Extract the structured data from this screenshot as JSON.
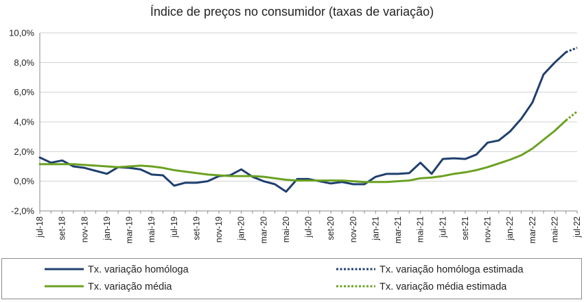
{
  "chart_data": {
    "type": "line",
    "title": "Índice de preços no consumidor  (taxas  de variação)",
    "xlabel": "",
    "ylabel": "",
    "ylim": [
      -2.0,
      10.0
    ],
    "yticks": [
      "-2,0%",
      "0,0%",
      "2,0%",
      "4,0%",
      "6,0%",
      "8,0%",
      "10,0%"
    ],
    "ytick_values": [
      -2,
      0,
      2,
      4,
      6,
      8,
      10
    ],
    "grid": "horizontal",
    "legend_position": "bottom",
    "colors": {
      "homologa": "#1f3f6e",
      "media": "#6aa121",
      "gridline": "#d0d0d0",
      "axis": "#8a8a8a"
    },
    "x": [
      "jul-18",
      "ago-18",
      "set-18",
      "out-18",
      "nov-18",
      "dez-18",
      "jan-19",
      "fev-19",
      "mar-19",
      "abr-19",
      "mai-19",
      "jun-19",
      "jul-19",
      "ago-19",
      "set-19",
      "out-19",
      "nov-19",
      "dez-19",
      "jan-20",
      "fev-20",
      "mar-20",
      "abr-20",
      "mai-20",
      "jun-20",
      "jul-20",
      "ago-20",
      "set-20",
      "out-20",
      "nov-20",
      "dez-20",
      "jan-21",
      "fev-21",
      "mar-21",
      "abr-21",
      "mai-21",
      "jun-21",
      "jul-21",
      "ago-21",
      "set-21",
      "out-21",
      "nov-21",
      "dez-21",
      "jan-22",
      "fev-22",
      "mar-22",
      "abr-22",
      "mai-22",
      "jun-22",
      "jul-22"
    ],
    "xtick_labels": [
      "jul-18",
      "set-18",
      "nov-18",
      "jan-19",
      "mar-19",
      "mai-19",
      "jul-19",
      "set-19",
      "nov-19",
      "jan-20",
      "mar-20",
      "mai-20",
      "jul-20",
      "set-20",
      "nov-20",
      "jan-21",
      "mar-21",
      "mai-21",
      "jul-21",
      "set-21",
      "nov-21",
      "jan-22",
      "mar-22",
      "mai-22",
      "jul-22"
    ],
    "series": [
      {
        "name": "Tx. variação homóloga",
        "style": "solid",
        "values": [
          1.6,
          1.25,
          1.4,
          1.0,
          0.9,
          0.7,
          0.5,
          0.95,
          0.9,
          0.8,
          0.45,
          0.4,
          -0.3,
          -0.1,
          -0.1,
          0.0,
          0.35,
          0.4,
          0.8,
          0.3,
          0.0,
          -0.2,
          -0.7,
          0.15,
          0.15,
          0.0,
          -0.15,
          -0.05,
          -0.2,
          -0.2,
          0.3,
          0.5,
          0.5,
          0.55,
          1.25,
          0.5,
          1.5,
          1.55,
          1.5,
          1.8,
          2.6,
          2.75,
          3.35,
          4.2,
          5.3,
          7.2,
          8.0,
          8.7,
          null
        ]
      },
      {
        "name": "Tx. variação homóloga estimada",
        "style": "dotted",
        "values": [
          null,
          null,
          null,
          null,
          null,
          null,
          null,
          null,
          null,
          null,
          null,
          null,
          null,
          null,
          null,
          null,
          null,
          null,
          null,
          null,
          null,
          null,
          null,
          null,
          null,
          null,
          null,
          null,
          null,
          null,
          null,
          null,
          null,
          null,
          null,
          null,
          null,
          null,
          null,
          null,
          null,
          null,
          null,
          null,
          null,
          null,
          null,
          8.7,
          9.0
        ]
      },
      {
        "name": "Tx. variação média",
        "style": "solid",
        "values": [
          1.15,
          1.15,
          1.15,
          1.15,
          1.1,
          1.05,
          1.0,
          0.95,
          1.0,
          1.05,
          1.0,
          0.9,
          0.75,
          0.65,
          0.55,
          0.45,
          0.4,
          0.35,
          0.35,
          0.35,
          0.3,
          0.2,
          0.1,
          0.05,
          0.05,
          0.05,
          0.05,
          0.05,
          0.0,
          -0.05,
          -0.05,
          -0.05,
          0.0,
          0.05,
          0.2,
          0.25,
          0.35,
          0.5,
          0.6,
          0.75,
          0.95,
          1.2,
          1.45,
          1.75,
          2.2,
          2.8,
          3.4,
          4.1,
          null
        ]
      },
      {
        "name": "Tx. variação média  estimada",
        "style": "dotted",
        "values": [
          null,
          null,
          null,
          null,
          null,
          null,
          null,
          null,
          null,
          null,
          null,
          null,
          null,
          null,
          null,
          null,
          null,
          null,
          null,
          null,
          null,
          null,
          null,
          null,
          null,
          null,
          null,
          null,
          null,
          null,
          null,
          null,
          null,
          null,
          null,
          null,
          null,
          null,
          null,
          null,
          null,
          null,
          null,
          null,
          null,
          null,
          null,
          4.1,
          4.7
        ]
      }
    ]
  }
}
